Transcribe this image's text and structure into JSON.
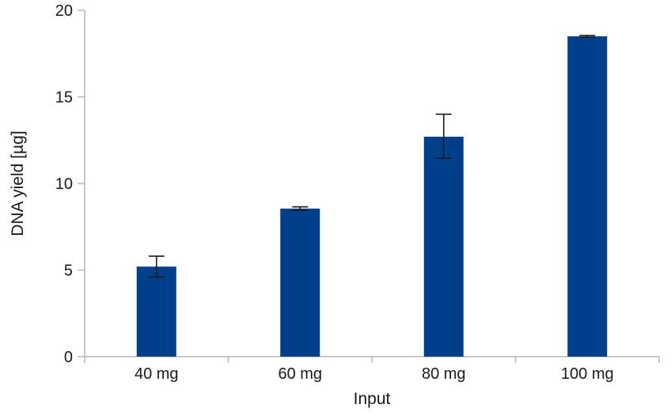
{
  "chart_data": {
    "type": "bar",
    "categories": [
      "40 mg",
      "60 mg",
      "80 mg",
      "100 mg"
    ],
    "values": [
      5.2,
      8.55,
      12.7,
      18.5
    ],
    "error_low": [
      4.6,
      8.45,
      11.45,
      18.45
    ],
    "error_high": [
      5.8,
      8.65,
      14.0,
      18.55
    ],
    "title": "",
    "xlabel": "Input",
    "ylabel": "DNA yield [µg]",
    "ylim": [
      0,
      20
    ],
    "yticks": [
      0,
      5,
      10,
      15,
      20
    ],
    "grid": false,
    "bar_color": "#003f8a"
  }
}
